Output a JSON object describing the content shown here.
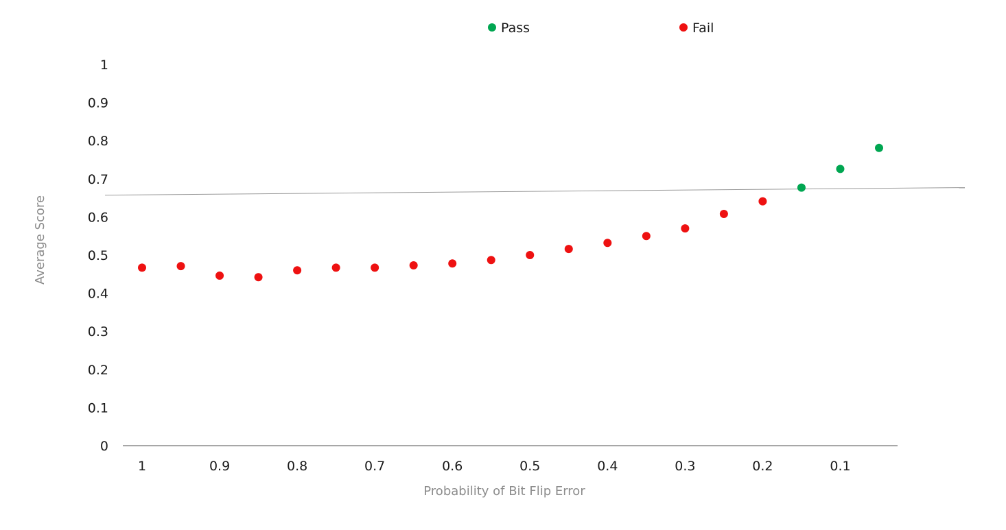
{
  "chart_data": {
    "type": "scatter",
    "title": "",
    "xlabel": "Probability of Bit Flip Error",
    "ylabel": "Average Score",
    "x_reversed": true,
    "xlim": [
      1.0,
      0.05
    ],
    "ylim": [
      0,
      1
    ],
    "x_ticks": [
      "1",
      "0.9",
      "0.8",
      "0.7",
      "0.6",
      "0.5",
      "0.4",
      "0.3",
      "0.2",
      "0.1"
    ],
    "x_tick_values": [
      1.0,
      0.9,
      0.8,
      0.7,
      0.6,
      0.5,
      0.4,
      0.3,
      0.2,
      0.1
    ],
    "y_ticks": [
      "0",
      "0.1",
      "0.2",
      "0.3",
      "0.4",
      "0.5",
      "0.6",
      "0.7",
      "0.8",
      "0.9",
      "1"
    ],
    "y_tick_values": [
      0,
      0.1,
      0.2,
      0.3,
      0.4,
      0.5,
      0.6,
      0.7,
      0.8,
      0.9,
      1
    ],
    "grid": false,
    "legend_position": "top",
    "threshold_line": {
      "start": [
        1.0,
        0.658
      ],
      "end": [
        0.05,
        0.675
      ],
      "color": "#999999"
    },
    "series": [
      {
        "name": "Pass",
        "color": "#00a651",
        "points": [
          [
            0.15,
            0.677
          ],
          [
            0.1,
            0.726
          ],
          [
            0.05,
            0.781
          ]
        ]
      },
      {
        "name": "Fail",
        "color": "#ee1111",
        "points": [
          [
            1.0,
            0.467
          ],
          [
            0.95,
            0.471
          ],
          [
            0.9,
            0.446
          ],
          [
            0.85,
            0.442
          ],
          [
            0.8,
            0.46
          ],
          [
            0.75,
            0.467
          ],
          [
            0.7,
            0.467
          ],
          [
            0.65,
            0.473
          ],
          [
            0.6,
            0.478
          ],
          [
            0.55,
            0.487
          ],
          [
            0.5,
            0.5
          ],
          [
            0.45,
            0.516
          ],
          [
            0.4,
            0.532
          ],
          [
            0.35,
            0.55
          ],
          [
            0.3,
            0.57
          ],
          [
            0.25,
            0.608
          ],
          [
            0.2,
            0.641
          ]
        ]
      }
    ]
  }
}
